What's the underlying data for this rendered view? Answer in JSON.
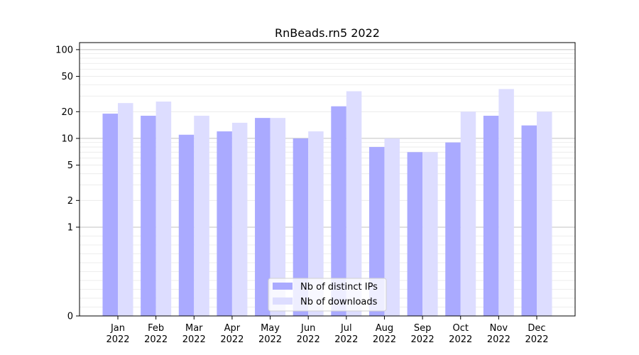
{
  "chart_data": {
    "type": "bar",
    "title": "RnBeads.rn5 2022",
    "xlabel": "",
    "ylabel": "",
    "y_scale": "symlog",
    "ylim": [
      0,
      120
    ],
    "y_ticks": [
      0,
      1,
      2,
      5,
      10,
      20,
      50,
      100
    ],
    "grid": "horizontal",
    "legend_position": "bottom-center",
    "categories": [
      [
        "Jan",
        "2022"
      ],
      [
        "Feb",
        "2022"
      ],
      [
        "Mar",
        "2022"
      ],
      [
        "Apr",
        "2022"
      ],
      [
        "May",
        "2022"
      ],
      [
        "Jun",
        "2022"
      ],
      [
        "Jul",
        "2022"
      ],
      [
        "Aug",
        "2022"
      ],
      [
        "Sep",
        "2022"
      ],
      [
        "Oct",
        "2022"
      ],
      [
        "Nov",
        "2022"
      ],
      [
        "Dec",
        "2022"
      ]
    ],
    "series": [
      {
        "name": "Nb of distinct IPs",
        "color": "#aaaaff",
        "values": [
          19,
          18,
          11,
          12,
          17,
          10,
          23,
          8,
          7,
          9,
          18,
          14
        ]
      },
      {
        "name": "Nb of downloads",
        "color": "#ddddff",
        "values": [
          25,
          26,
          18,
          15,
          17,
          12,
          34,
          10,
          7,
          20,
          36,
          20
        ]
      }
    ]
  }
}
